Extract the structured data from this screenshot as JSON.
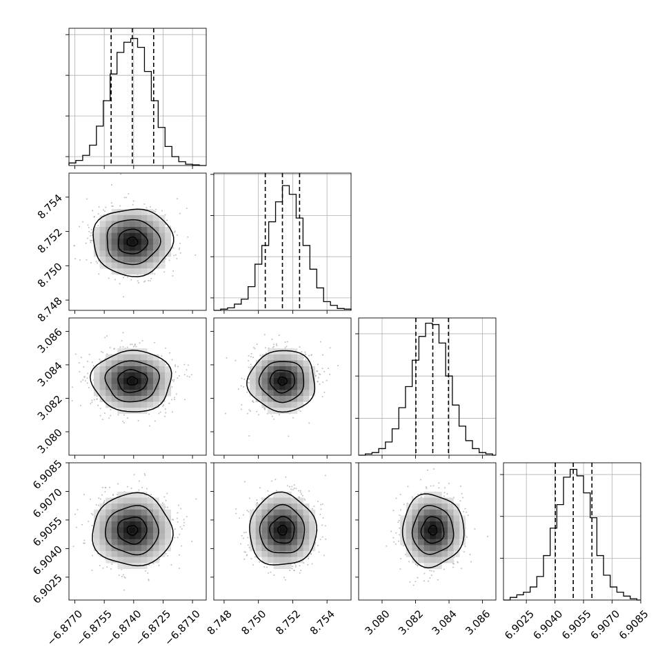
{
  "chart_data": {
    "type": "corner",
    "parameters": [
      {
        "range": [
          -6.8773,
          -6.8703
        ],
        "ticks": [
          -6.877,
          -6.8755,
          -6.874,
          -6.8725,
          -6.871
        ],
        "tick_labels": [
          "−6.8770",
          "−6.8755",
          "−6.8740",
          "−6.8725",
          "−6.8710"
        ],
        "quantiles": [
          -6.87515,
          -6.87407,
          -6.87298
        ],
        "hist": {
          "edges": [
            -6.8773,
            -6.87695,
            -6.8766,
            -6.87625,
            -6.8759,
            -6.87555,
            -6.8752,
            -6.87485,
            -6.8745,
            -6.87415,
            -6.8738,
            -6.87345,
            -6.8731,
            -6.87275,
            -6.8724,
            -6.87205,
            -6.8717,
            -6.87135,
            -6.871,
            -6.87065,
            -6.8703
          ],
          "counts": [
            0.02,
            0.04,
            0.08,
            0.16,
            0.31,
            0.51,
            0.72,
            0.89,
            0.97,
            1.0,
            0.93,
            0.74,
            0.51,
            0.3,
            0.15,
            0.07,
            0.03,
            0.01,
            0.005,
            0.0
          ],
          "ylim": [
            0,
            1.08
          ],
          "gridlines": [
            0.07,
            0.39,
            0.71,
            1.03
          ]
        }
      },
      {
        "range": [
          8.7474,
          8.7554
        ],
        "ticks": [
          8.748,
          8.75,
          8.752,
          8.754
        ],
        "tick_labels": [
          "8.748",
          "8.750",
          "8.752",
          "8.754"
        ],
        "quantiles": [
          8.7504,
          8.7514,
          8.7524
        ],
        "hist": {
          "edges": [
            8.7474,
            8.7478,
            8.7482,
            8.7486,
            8.749,
            8.7494,
            8.7498,
            8.7502,
            8.7506,
            8.751,
            8.7514,
            8.7518,
            8.7522,
            8.7526,
            8.753,
            8.7534,
            8.7538,
            8.7542,
            8.7546,
            8.755,
            8.7554
          ],
          "counts": [
            0.0,
            0.01,
            0.02,
            0.05,
            0.09,
            0.19,
            0.37,
            0.52,
            0.71,
            0.87,
            1.0,
            0.93,
            0.74,
            0.52,
            0.33,
            0.18,
            0.07,
            0.04,
            0.015,
            0.01
          ],
          "ylim": [
            0,
            1.1
          ],
          "gridlines": [
            0.1,
            0.43,
            0.76,
            1.09
          ]
        }
      },
      {
        "range": [
          3.0786,
          3.0868
        ],
        "ticks": [
          3.08,
          3.082,
          3.084,
          3.086
        ],
        "tick_labels": [
          "3.080",
          "3.082",
          "3.084",
          "3.086"
        ],
        "quantiles": [
          3.08202,
          3.08303,
          3.08397
        ],
        "hist": {
          "edges": [
            3.0786,
            3.079,
            3.0794,
            3.0798,
            3.0802,
            3.0806,
            3.081,
            3.0814,
            3.0818,
            3.0822,
            3.0826,
            3.083,
            3.0834,
            3.0838,
            3.0842,
            3.0846,
            3.085,
            3.0854,
            3.0858,
            3.0862,
            3.0866,
            3.0868
          ],
          "counts": [
            0.0,
            0.01,
            0.02,
            0.05,
            0.1,
            0.2,
            0.36,
            0.52,
            0.72,
            0.9,
            1.0,
            0.99,
            0.85,
            0.6,
            0.38,
            0.22,
            0.11,
            0.05,
            0.02,
            0.01,
            0.0
          ],
          "ylim": [
            0,
            1.04
          ],
          "gridlines": [
            0.28,
            0.6,
            0.92
          ]
        }
      },
      {
        "range": [
          6.9013,
          6.9085
        ],
        "ticks": [
          6.9025,
          6.904,
          6.9055,
          6.907,
          6.9085
        ],
        "tick_labels": [
          "6.9025",
          "6.9040",
          "6.9055",
          "6.9070",
          "6.9085"
        ],
        "quantiles": [
          6.90402,
          6.90496,
          6.90594
        ],
        "hist": {
          "edges": [
            6.9013,
            6.90165,
            6.902,
            6.90235,
            6.9027,
            6.90305,
            6.9034,
            6.90375,
            6.9041,
            6.90445,
            6.9048,
            6.90515,
            6.9055,
            6.90585,
            6.9062,
            6.90655,
            6.9069,
            6.90725,
            6.9076,
            6.90795,
            6.9083,
            6.9085
          ],
          "counts": [
            0.0,
            0.02,
            0.04,
            0.06,
            0.1,
            0.18,
            0.34,
            0.55,
            0.73,
            0.94,
            1.0,
            0.95,
            0.82,
            0.63,
            0.34,
            0.19,
            0.1,
            0.06,
            0.03,
            0.01,
            0.0
          ],
          "ylim": [
            0,
            1.05
          ],
          "gridlines": [
            0.32,
            0.64,
            0.96
          ]
        }
      }
    ],
    "scatter_panels": [
      {
        "x": 0,
        "y": 1,
        "center": [
          -6.87407,
          8.7514
        ],
        "sigma": [
          0.00102,
          0.00098
        ]
      },
      {
        "x": 0,
        "y": 2,
        "center": [
          -6.87407,
          3.08303
        ],
        "sigma": [
          0.00102,
          0.00092
        ]
      },
      {
        "x": 1,
        "y": 2,
        "center": [
          8.7514,
          3.08303
        ],
        "sigma": [
          0.00098,
          0.00092
        ]
      },
      {
        "x": 0,
        "y": 3,
        "center": [
          -6.87407,
          6.90496
        ],
        "sigma": [
          0.00102,
          0.00095
        ]
      },
      {
        "x": 1,
        "y": 3,
        "center": [
          8.7514,
          6.90496
        ],
        "sigma": [
          0.00098,
          0.00095
        ]
      },
      {
        "x": 2,
        "y": 3,
        "center": [
          3.08303,
          6.90496
        ],
        "sigma": [
          0.00092,
          0.00095
        ]
      }
    ],
    "grid": true
  }
}
